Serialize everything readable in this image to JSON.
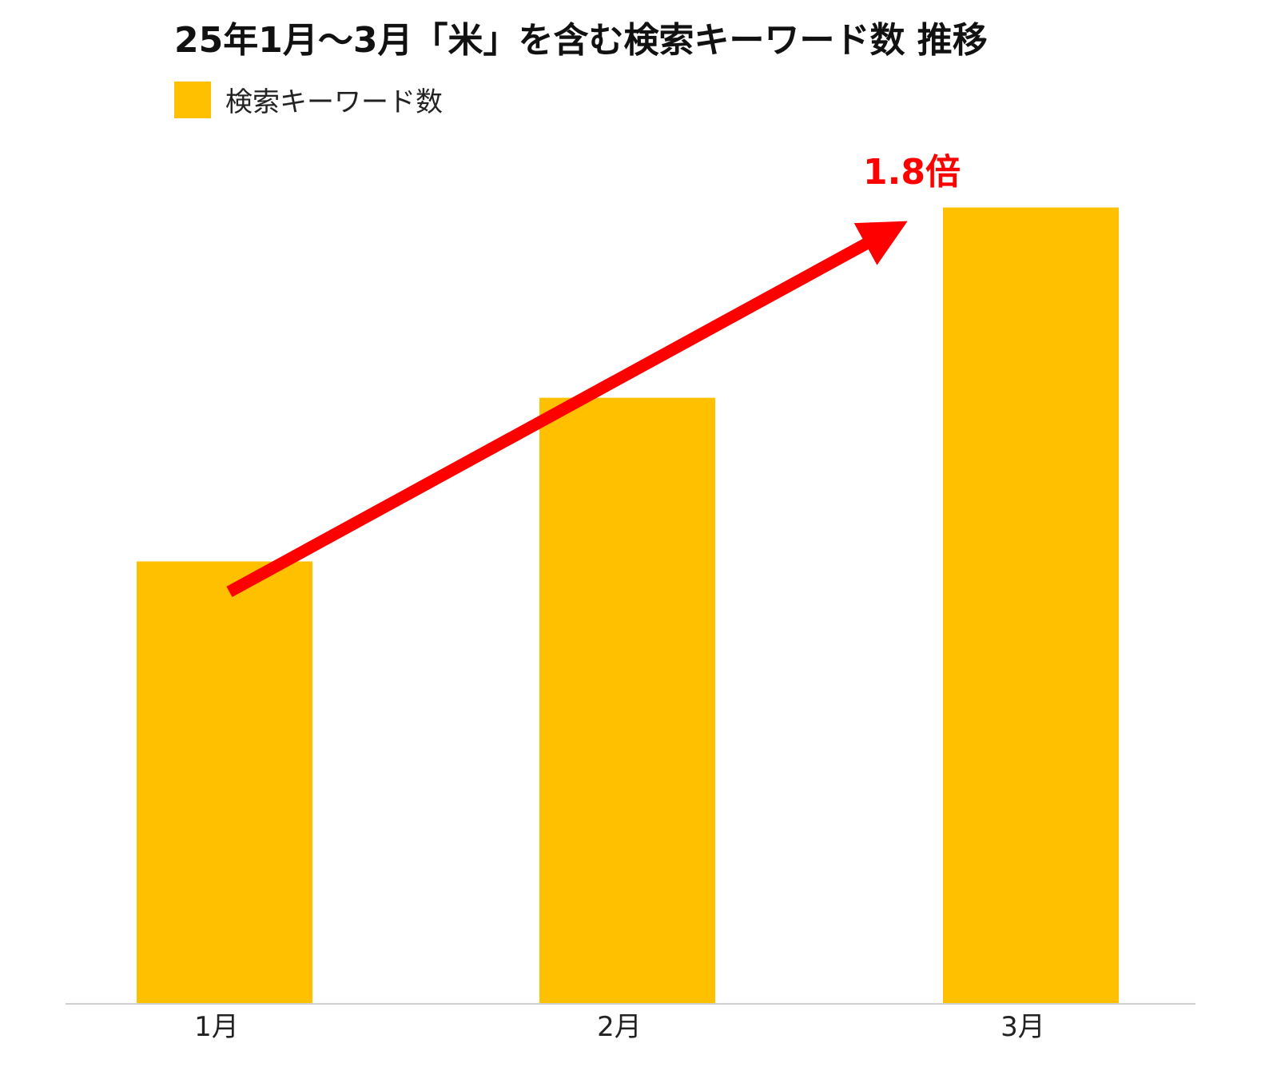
{
  "chart_data": {
    "type": "bar",
    "title": "25年1月～3月「米」を含む検索キーワード数 推移",
    "categories": [
      "1月",
      "2月",
      "3月"
    ],
    "series": [
      {
        "name": "検索キーワード数",
        "values": [
          1.0,
          1.37,
          1.8
        ],
        "color": "#FFC000"
      }
    ],
    "ylim": [
      0,
      1.83
    ],
    "grid": false,
    "legend": "top-left",
    "annotation": {
      "text": "1.8倍",
      "color": "#FF0000",
      "arrow_from": "1月",
      "arrow_to": "3月"
    }
  }
}
